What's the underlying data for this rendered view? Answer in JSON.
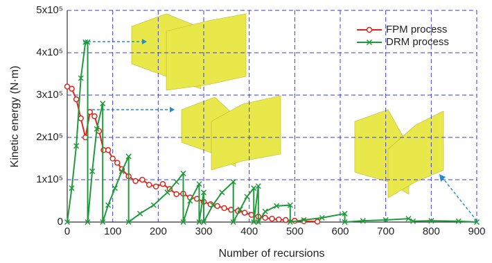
{
  "chart_data": {
    "type": "line",
    "x_label": "Number of recursions",
    "y_label": "Kinetic energy (N·m)",
    "xlim": [
      0,
      900
    ],
    "ylim": [
      0,
      500000
    ],
    "xticks": [
      0,
      100,
      200,
      300,
      400,
      500,
      600,
      700,
      800,
      900
    ],
    "yticks": [
      0,
      {
        "value": 100000,
        "label": "1x10⁵"
      },
      {
        "value": 200000,
        "label": "2x10⁵"
      },
      {
        "value": 300000,
        "label": "3x10⁵"
      },
      {
        "value": 400000,
        "label": "4x10⁵"
      },
      {
        "value": 500000,
        "label": "5x10⁵"
      }
    ],
    "grid": true,
    "legend": "upper right",
    "series": [
      {
        "name": "FPM process",
        "color": "#e0231c",
        "marker": "circle",
        "x": [
          0,
          10,
          20,
          30,
          40,
          50,
          60,
          70,
          80,
          90,
          100,
          110,
          120,
          135,
          150,
          165,
          180,
          195,
          210,
          225,
          240,
          255,
          270,
          285,
          300,
          315,
          330,
          345,
          360,
          375,
          390,
          405,
          420,
          435,
          450,
          465,
          480,
          500,
          520,
          550
        ],
        "values": [
          320000,
          315000,
          290000,
          245000,
          200000,
          260000,
          250000,
          215000,
          170000,
          170000,
          150000,
          140000,
          125000,
          108000,
          97000,
          100000,
          88000,
          84000,
          90000,
          78000,
          66000,
          67000,
          58000,
          55000,
          48000,
          42000,
          38000,
          33000,
          29000,
          26000,
          22000,
          17000,
          13000,
          10000,
          8000,
          6000,
          5000,
          3000,
          2000,
          1000
        ]
      },
      {
        "name": "DRM process",
        "color": "#1f9a3a",
        "marker": "x",
        "x": [
          0,
          10,
          20,
          30,
          40,
          45,
          45,
          55,
          65,
          78,
          78,
          90,
          105,
          120,
          135,
          135,
          160,
          190,
          220,
          240,
          255,
          255,
          270,
          290,
          290,
          300,
          300,
          320,
          340,
          365,
          365,
          380,
          395,
          410,
          410,
          420,
          420,
          435,
          460,
          490,
          490,
          520,
          560,
          610,
          610,
          650,
          700,
          750,
          760,
          800,
          860,
          900
        ],
        "values": [
          0,
          80000,
          180000,
          340000,
          425000,
          425000,
          0,
          120000,
          220000,
          280000,
          0,
          40000,
          80000,
          120000,
          155000,
          0,
          20000,
          40000,
          70000,
          95000,
          115000,
          0,
          50000,
          90000,
          0,
          70000,
          0,
          40000,
          70000,
          95000,
          0,
          30000,
          60000,
          80000,
          0,
          85000,
          0,
          25000,
          38000,
          40000,
          0,
          5000,
          10000,
          20000,
          0,
          3000,
          5000,
          8000,
          2000,
          3000,
          2000,
          0
        ]
      }
    ]
  }
}
